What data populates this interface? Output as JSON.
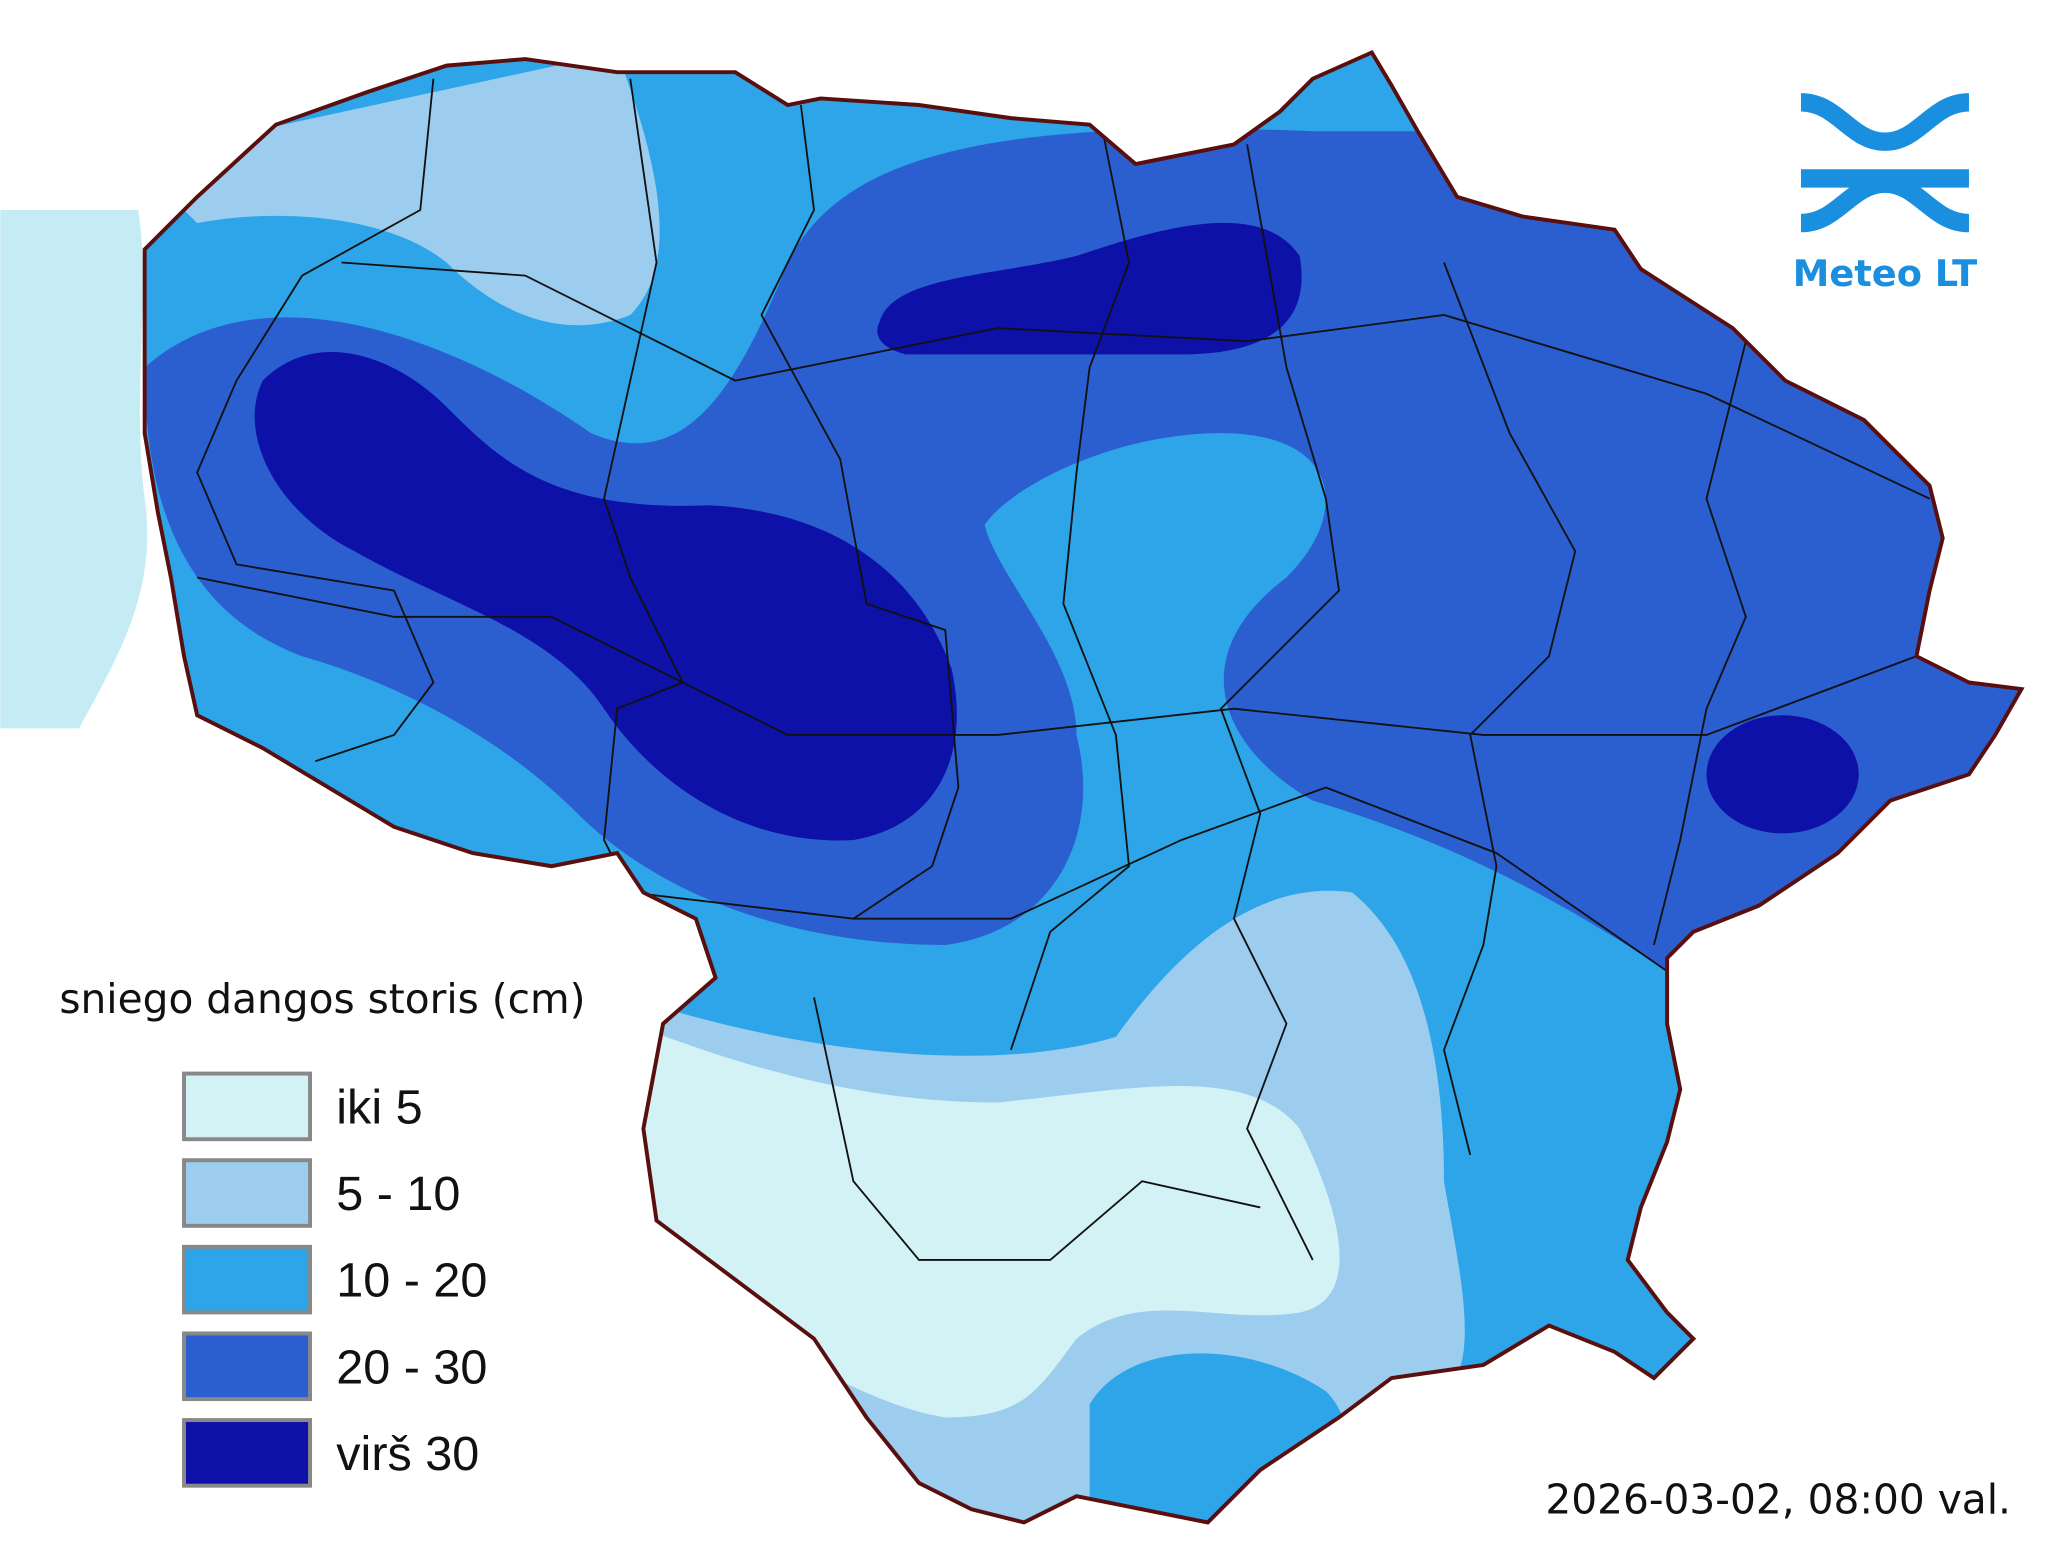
{
  "legend": {
    "title": "sniego dangos storis (cm)",
    "items": [
      {
        "label": "iki 5",
        "color": "#d2f2f5"
      },
      {
        "label": "5 - 10",
        "color": "#9ccdee"
      },
      {
        "label": "10 - 20",
        "color": "#2da5e8"
      },
      {
        "label": "20 - 30",
        "color": "#2b5fcf"
      },
      {
        "label": "virš 30",
        "color": "#0d11a8"
      }
    ]
  },
  "logo": {
    "text": "Meteo LT"
  },
  "timestamp": "2026-03-02, 08:00 val."
}
